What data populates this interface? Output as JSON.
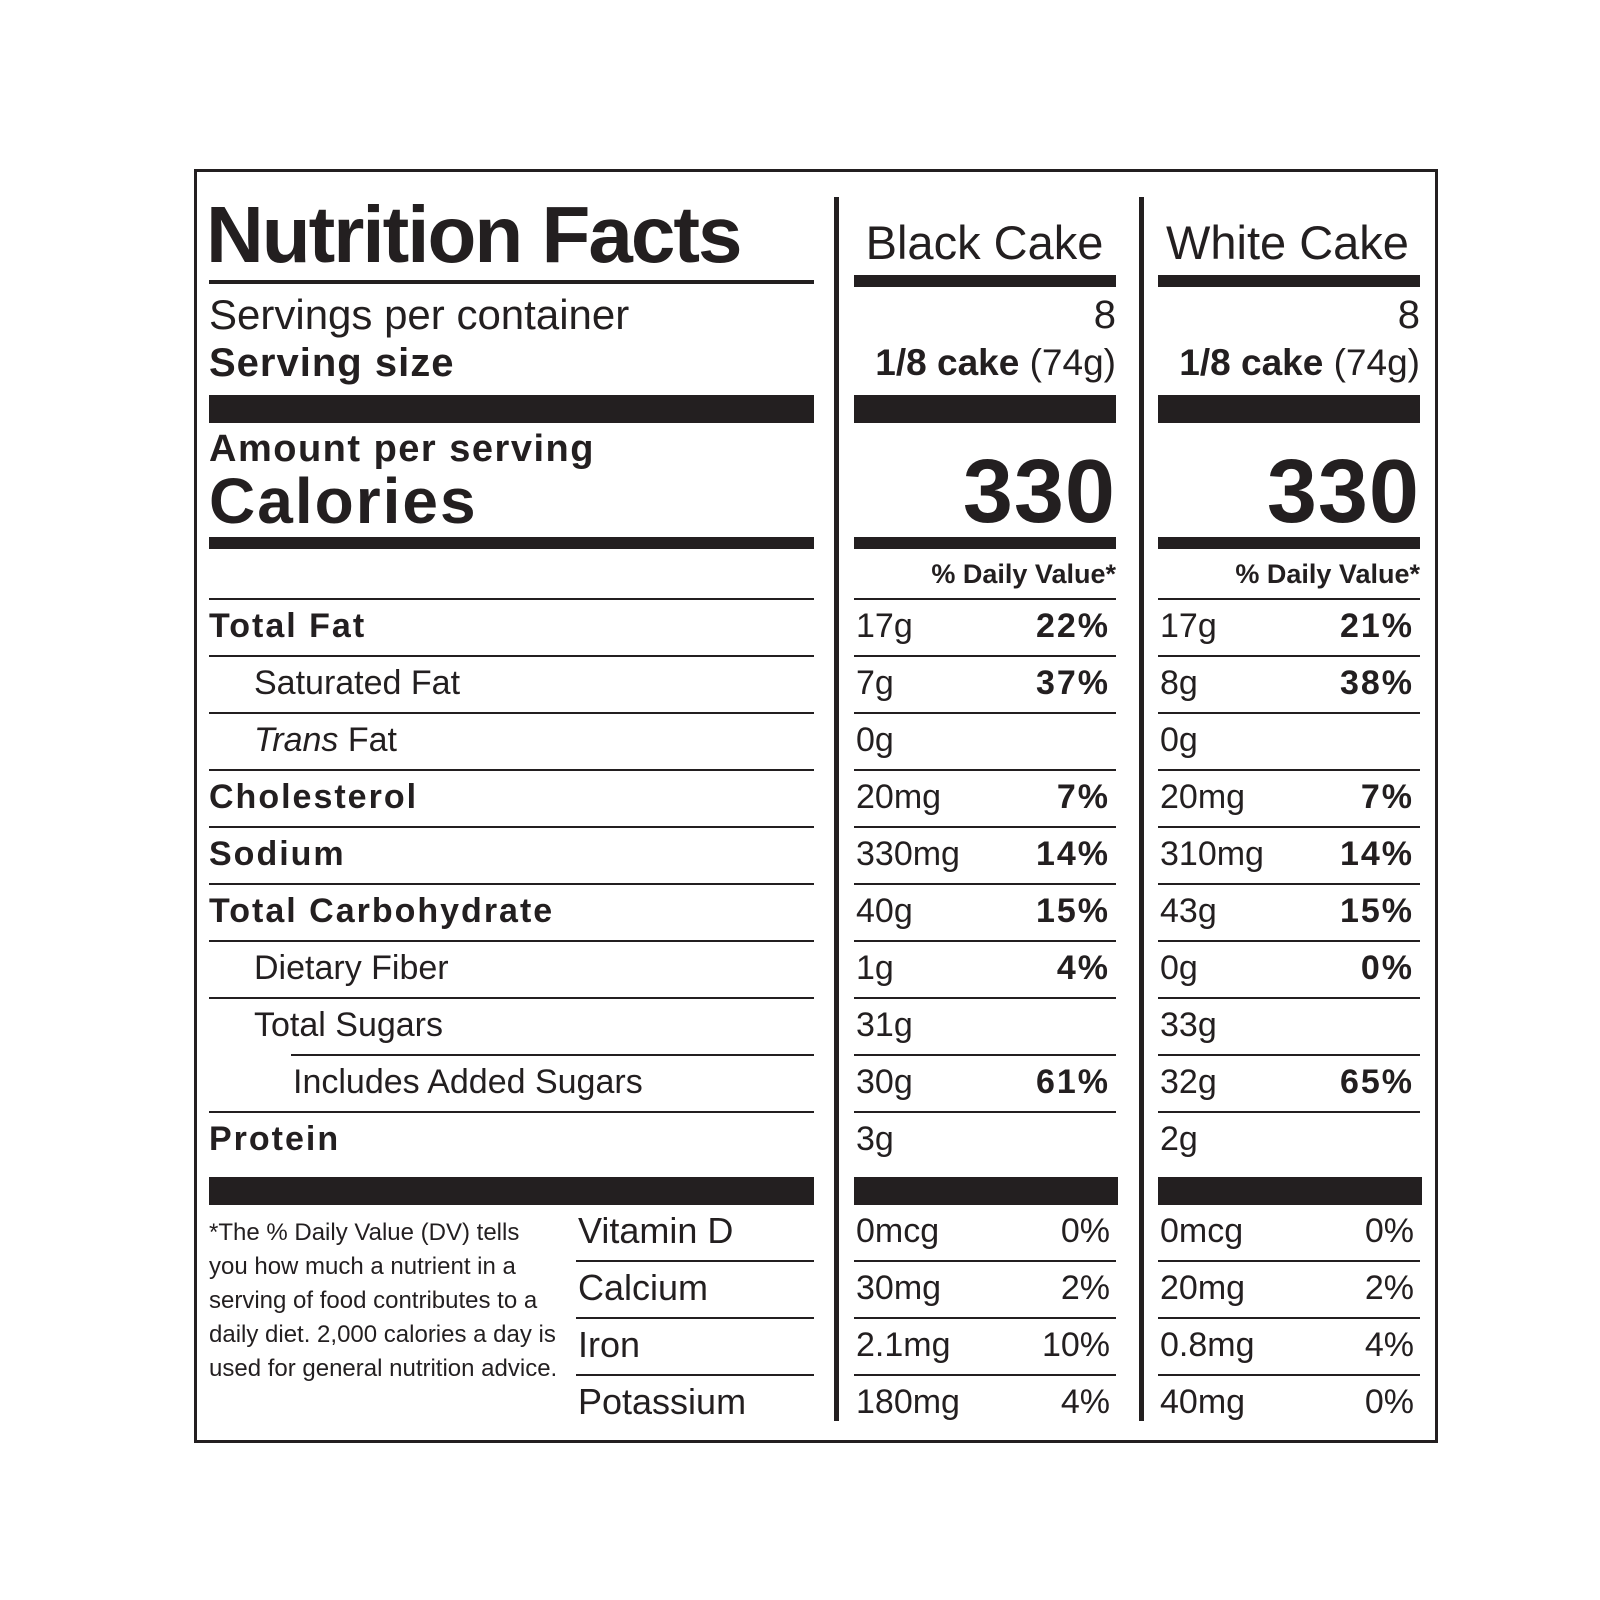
{
  "header": {
    "title": "Nutrition Facts",
    "columns": [
      "Black Cake",
      "White Cake"
    ],
    "servings_label": "Servings per container",
    "serving_size_label": "Serving size",
    "servings": [
      "8",
      "8"
    ],
    "serving_size_bold": [
      "1/8 cake",
      "1/8 cake"
    ],
    "serving_size_weight": [
      "(74g)",
      "(74g)"
    ]
  },
  "calories": {
    "amount_per_serving": "Amount per serving",
    "label": "Calories",
    "values": [
      "330",
      "330"
    ],
    "dv_header": "% Daily Value*"
  },
  "nutrients": [
    {
      "label": "Total Fat",
      "bold": true,
      "indent": 0,
      "black": {
        "amount": "17g",
        "dv": "22%"
      },
      "white": {
        "amount": "17g",
        "dv": "21%"
      }
    },
    {
      "label": "Saturated Fat",
      "bold": false,
      "indent": 1,
      "black": {
        "amount": "7g",
        "dv": "37%"
      },
      "white": {
        "amount": "8g",
        "dv": "38%"
      }
    },
    {
      "label_italic": "Trans",
      "label": " Fat",
      "bold": false,
      "indent": 1,
      "black": {
        "amount": "0g",
        "dv": ""
      },
      "white": {
        "amount": "0g",
        "dv": ""
      }
    },
    {
      "label": "Cholesterol",
      "bold": true,
      "indent": 0,
      "black": {
        "amount": "20mg",
        "dv": "7%"
      },
      "white": {
        "amount": "20mg",
        "dv": "7%"
      }
    },
    {
      "label": "Sodium",
      "bold": true,
      "indent": 0,
      "black": {
        "amount": "330mg",
        "dv": "14%"
      },
      "white": {
        "amount": "310mg",
        "dv": "14%"
      }
    },
    {
      "label": "Total Carbohydrate",
      "bold": true,
      "indent": 0,
      "black": {
        "amount": "40g",
        "dv": "15%"
      },
      "white": {
        "amount": "43g",
        "dv": "15%"
      }
    },
    {
      "label": "Dietary Fiber",
      "bold": false,
      "indent": 1,
      "black": {
        "amount": "1g",
        "dv": "4%"
      },
      "white": {
        "amount": "0g",
        "dv": "0%"
      }
    },
    {
      "label": "Total Sugars",
      "bold": false,
      "indent": 1,
      "black": {
        "amount": "31g",
        "dv": ""
      },
      "white": {
        "amount": "33g",
        "dv": ""
      }
    },
    {
      "label": "Includes Added Sugars",
      "bold": false,
      "indent": 2,
      "black": {
        "amount": "30g",
        "dv": "61%"
      },
      "white": {
        "amount": "32g",
        "dv": "65%"
      }
    },
    {
      "label": "Protein",
      "bold": true,
      "indent": 0,
      "black": {
        "amount": "3g",
        "dv": ""
      },
      "white": {
        "amount": "2g",
        "dv": ""
      }
    }
  ],
  "vitamins": [
    {
      "label": "Vitamin D",
      "black": {
        "amount": "0mcg",
        "dv": "0%"
      },
      "white": {
        "amount": "0mcg",
        "dv": "0%"
      }
    },
    {
      "label": "Calcium",
      "black": {
        "amount": "30mg",
        "dv": "2%"
      },
      "white": {
        "amount": "20mg",
        "dv": "2%"
      }
    },
    {
      "label": "Iron",
      "black": {
        "amount": "2.1mg",
        "dv": "10%"
      },
      "white": {
        "amount": "0.8mg",
        "dv": "4%"
      }
    },
    {
      "label": "Potassium",
      "black": {
        "amount": "180mg",
        "dv": "4%"
      },
      "white": {
        "amount": "40mg",
        "dv": "0%"
      }
    }
  ],
  "footnote": "*The % Daily Value (DV) tells you how much a nutrient in a serving of food contributes to a daily diet. 2,000 calories a day is used for general nutrition advice."
}
